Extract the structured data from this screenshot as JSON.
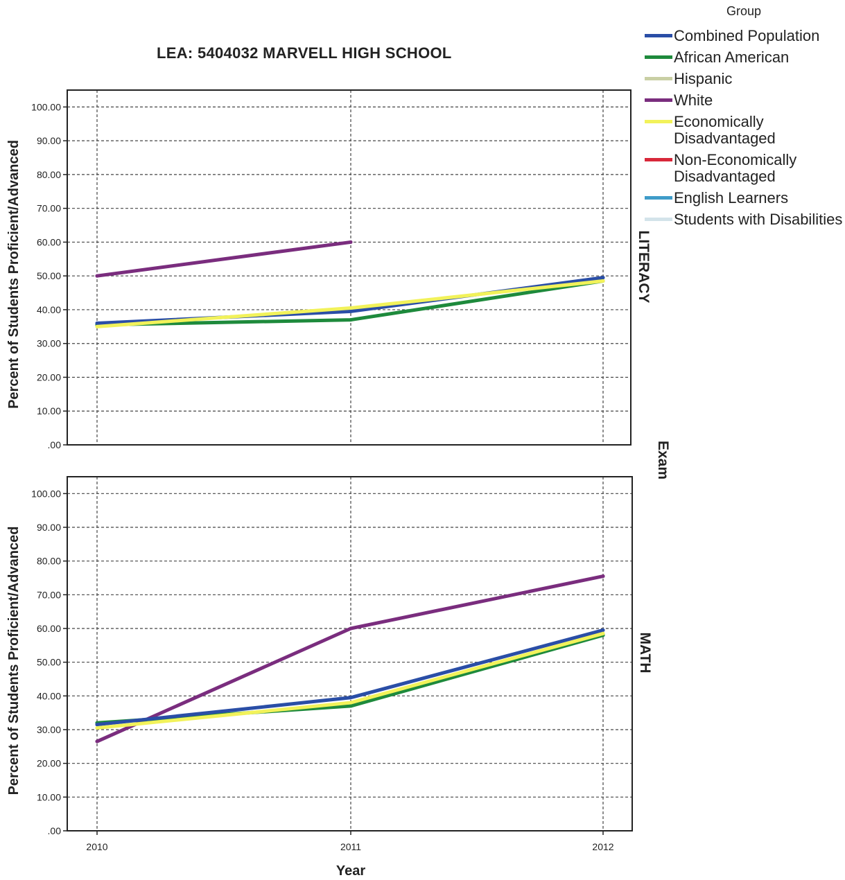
{
  "chart_data": {
    "type": "line",
    "title": "LEA: 5404032 MARVELL HIGH SCHOOL",
    "xlabel": "Year",
    "ylabel": "Percent of Students Proficient/Advanced",
    "facet_label": "Exam",
    "legend_title": "Group",
    "legend_position": "top-right",
    "grid": true,
    "x": [
      "2010",
      "2011",
      "2012"
    ],
    "ylim": [
      0,
      105
    ],
    "y_ticks": [
      ".00",
      "10.00",
      "20.00",
      "30.00",
      "40.00",
      "50.00",
      "60.00",
      "70.00",
      "80.00",
      "90.00",
      "100.00"
    ],
    "series_legend": [
      {
        "name": "Combined Population",
        "color": "#2a4ea6"
      },
      {
        "name": "African American",
        "color": "#1e8a3c"
      },
      {
        "name": "Hispanic",
        "color": "#c9cfa4"
      },
      {
        "name": "White",
        "color": "#7a2d7e"
      },
      {
        "name": "Economically Disadvantaged",
        "color": "#f2f25a"
      },
      {
        "name": "Non-Economically Disadvantaged",
        "color": "#d8283a"
      },
      {
        "name": "English Learners",
        "color": "#3f9cc9"
      },
      {
        "name": "Students with Disabilities",
        "color": "#d3e3ea"
      }
    ],
    "panels": [
      {
        "label": "LITERACY",
        "series": [
          {
            "name": "White",
            "color": "#7a2d7e",
            "values": [
              50,
              60,
              null
            ]
          },
          {
            "name": "African American",
            "color": "#1e8a3c",
            "values": [
              35.5,
              37,
              48.5
            ]
          },
          {
            "name": "Combined Population",
            "color": "#2a4ea6",
            "values": [
              36,
              39.5,
              49.5
            ]
          },
          {
            "name": "Economically Disadvantaged",
            "color": "#f2f25a",
            "values": [
              35,
              40.5,
              48.5
            ]
          }
        ]
      },
      {
        "label": "MATH",
        "series": [
          {
            "name": "White",
            "color": "#7a2d7e",
            "values": [
              26.5,
              60,
              75.5
            ]
          },
          {
            "name": "African American",
            "color": "#1e8a3c",
            "values": [
              32,
              37,
              58
            ]
          },
          {
            "name": "Combined Population",
            "color": "#2a4ea6",
            "values": [
              31.5,
              39.5,
              59.5
            ]
          },
          {
            "name": "Economically Disadvantaged",
            "color": "#f2f25a",
            "values": [
              30.5,
              38,
              58.5
            ]
          }
        ]
      }
    ]
  }
}
